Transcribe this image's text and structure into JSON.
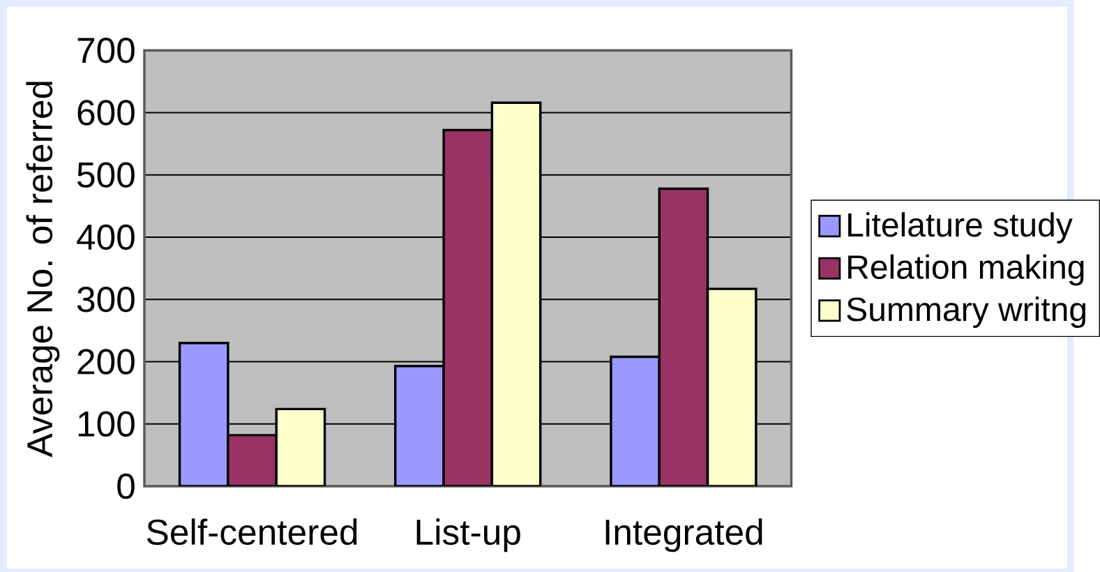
{
  "chart_data": {
    "type": "bar",
    "ylabel": "Average No. of referred",
    "categories": [
      "Self-centered",
      "List-up",
      "Integrated"
    ],
    "series": [
      {
        "name": "Litelature study",
        "color": "#9999ff",
        "values": [
          230,
          193,
          208
        ]
      },
      {
        "name": "Relation making",
        "color": "#993366",
        "values": [
          82,
          572,
          478
        ]
      },
      {
        "name": "Summary writng",
        "color": "#ffffcc",
        "values": [
          124,
          616,
          317
        ]
      }
    ],
    "ylim": [
      0,
      700
    ],
    "yticks": [
      0,
      100,
      200,
      300,
      400,
      500,
      600,
      700
    ],
    "grid": "y",
    "legend": "right"
  }
}
